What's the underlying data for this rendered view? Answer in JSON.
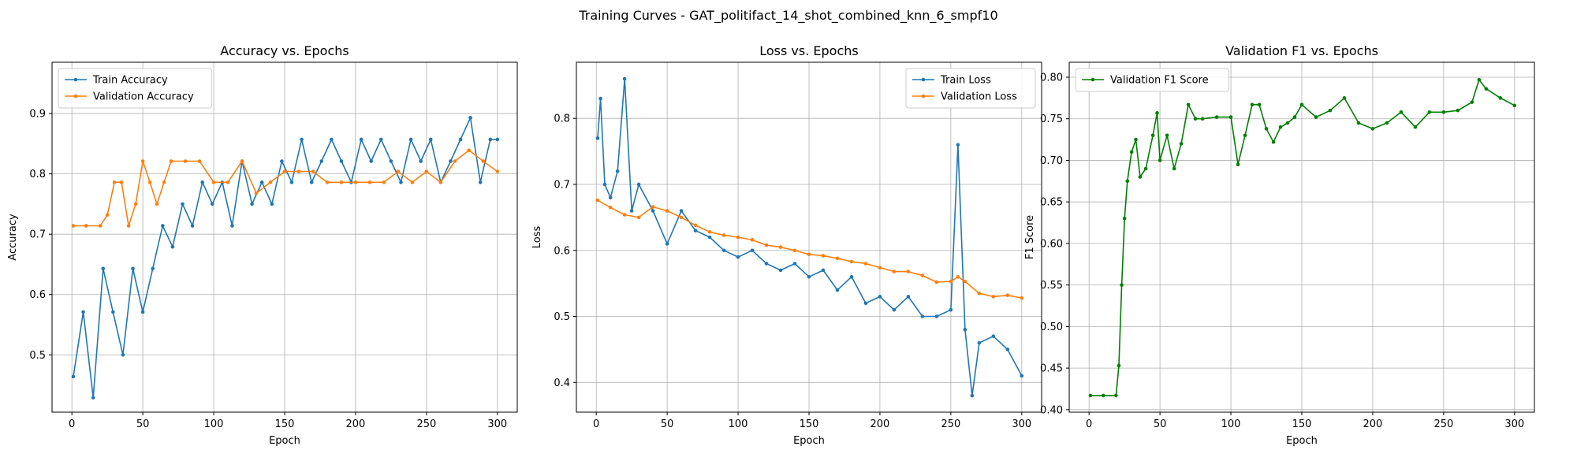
{
  "suptitle": "Training Curves - GAT_politifact_14_shot_combined_knn_6_smpf10",
  "colors": {
    "blue": "#1f77b4",
    "orange": "#ff7f0e",
    "green": "#008000",
    "grid": "#b0b0b0"
  },
  "chart_data": [
    {
      "type": "line",
      "title": "Accuracy vs. Epochs",
      "xlabel": "Epoch",
      "ylabel": "Accuracy",
      "xlim": [
        -14,
        314
      ],
      "ylim": [
        0.405,
        0.985
      ],
      "xticks": [
        0,
        50,
        100,
        150,
        200,
        250,
        300
      ],
      "yticks": [
        0.5,
        0.6,
        0.7,
        0.8,
        0.9
      ],
      "grid": true,
      "legend": "upper-left",
      "series": [
        {
          "name": "Train Accuracy",
          "color": "#1f77b4",
          "x": [
            1,
            8,
            15,
            22,
            29,
            36,
            43,
            50,
            57,
            64,
            71,
            78,
            85,
            92,
            99,
            106,
            113,
            120,
            127,
            134,
            141,
            148,
            155,
            162,
            169,
            176,
            183,
            190,
            197,
            204,
            211,
            218,
            225,
            232,
            239,
            246,
            253,
            260,
            267,
            274,
            281,
            288,
            295,
            300
          ],
          "values": [
            0.464,
            0.571,
            0.429,
            0.643,
            0.571,
            0.5,
            0.643,
            0.571,
            0.643,
            0.714,
            0.679,
            0.75,
            0.714,
            0.786,
            0.75,
            0.786,
            0.714,
            0.821,
            0.75,
            0.786,
            0.75,
            0.821,
            0.786,
            0.857,
            0.786,
            0.821,
            0.857,
            0.821,
            0.786,
            0.857,
            0.821,
            0.857,
            0.821,
            0.786,
            0.857,
            0.821,
            0.857,
            0.786,
            0.821,
            0.857,
            0.893,
            0.786,
            0.857,
            0.857
          ]
        },
        {
          "name": "Validation Accuracy",
          "color": "#ff7f0e",
          "x": [
            1,
            10,
            20,
            25,
            30,
            35,
            40,
            45,
            50,
            55,
            60,
            65,
            70,
            80,
            90,
            100,
            110,
            120,
            130,
            140,
            150,
            160,
            170,
            180,
            190,
            200,
            210,
            220,
            230,
            240,
            250,
            260,
            270,
            280,
            290,
            300
          ],
          "values": [
            0.714,
            0.714,
            0.714,
            0.732,
            0.786,
            0.786,
            0.714,
            0.75,
            0.821,
            0.786,
            0.75,
            0.786,
            0.821,
            0.821,
            0.821,
            0.786,
            0.786,
            0.821,
            0.768,
            0.786,
            0.804,
            0.804,
            0.804,
            0.786,
            0.786,
            0.786,
            0.786,
            0.786,
            0.804,
            0.786,
            0.804,
            0.786,
            0.821,
            0.839,
            0.821,
            0.804
          ]
        }
      ]
    },
    {
      "type": "line",
      "title": "Loss vs. Epochs",
      "xlabel": "Epoch",
      "ylabel": "Loss",
      "xlim": [
        -14,
        314
      ],
      "ylim": [
        0.355,
        0.885
      ],
      "xticks": [
        0,
        50,
        100,
        150,
        200,
        250,
        300
      ],
      "yticks": [
        0.4,
        0.5,
        0.6,
        0.7,
        0.8
      ],
      "grid": true,
      "legend": "upper-right",
      "series": [
        {
          "name": "Train Loss",
          "color": "#1f77b4",
          "x": [
            1,
            3,
            6,
            10,
            15,
            20,
            25,
            30,
            40,
            50,
            60,
            70,
            80,
            90,
            100,
            110,
            120,
            130,
            140,
            150,
            160,
            170,
            180,
            190,
            200,
            210,
            220,
            230,
            240,
            250,
            255,
            260,
            265,
            270,
            280,
            290,
            300
          ],
          "values": [
            0.77,
            0.83,
            0.7,
            0.68,
            0.72,
            0.86,
            0.66,
            0.7,
            0.66,
            0.61,
            0.66,
            0.63,
            0.62,
            0.6,
            0.59,
            0.6,
            0.58,
            0.57,
            0.58,
            0.56,
            0.57,
            0.54,
            0.56,
            0.52,
            0.53,
            0.51,
            0.53,
            0.5,
            0.5,
            0.51,
            0.76,
            0.48,
            0.38,
            0.46,
            0.47,
            0.45,
            0.41
          ]
        },
        {
          "name": "Validation Loss",
          "color": "#ff7f0e",
          "x": [
            1,
            10,
            20,
            30,
            40,
            50,
            60,
            70,
            80,
            90,
            100,
            110,
            120,
            130,
            140,
            150,
            160,
            170,
            180,
            190,
            200,
            210,
            220,
            230,
            240,
            250,
            255,
            260,
            270,
            280,
            290,
            300
          ],
          "values": [
            0.676,
            0.665,
            0.654,
            0.65,
            0.666,
            0.66,
            0.65,
            0.638,
            0.628,
            0.623,
            0.62,
            0.616,
            0.608,
            0.605,
            0.6,
            0.594,
            0.592,
            0.588,
            0.583,
            0.58,
            0.574,
            0.568,
            0.568,
            0.562,
            0.552,
            0.553,
            0.56,
            0.553,
            0.535,
            0.53,
            0.532,
            0.528
          ]
        }
      ]
    },
    {
      "type": "line",
      "title": "Validation F1 vs. Epochs",
      "xlabel": "Epoch",
      "ylabel": "F1 Score",
      "xlim": [
        -14,
        314
      ],
      "ylim": [
        0.397,
        0.818
      ],
      "xticks": [
        0,
        50,
        100,
        150,
        200,
        250,
        300
      ],
      "yticks": [
        0.4,
        0.45,
        0.5,
        0.55,
        0.6,
        0.65,
        0.7,
        0.75,
        0.8
      ],
      "grid": true,
      "legend": "upper-left",
      "series": [
        {
          "name": "Validation F1 Score",
          "color": "#008000",
          "x": [
            1,
            10,
            19,
            21,
            23,
            25,
            27,
            30,
            33,
            36,
            40,
            45,
            48,
            50,
            55,
            60,
            65,
            70,
            75,
            80,
            90,
            100,
            105,
            110,
            115,
            120,
            125,
            130,
            135,
            140,
            145,
            150,
            160,
            170,
            180,
            190,
            200,
            210,
            220,
            230,
            240,
            250,
            260,
            270,
            275,
            280,
            290,
            300
          ],
          "values": [
            0.417,
            0.417,
            0.417,
            0.453,
            0.55,
            0.63,
            0.675,
            0.71,
            0.725,
            0.68,
            0.69,
            0.73,
            0.757,
            0.7,
            0.73,
            0.69,
            0.72,
            0.767,
            0.75,
            0.75,
            0.752,
            0.752,
            0.695,
            0.73,
            0.767,
            0.767,
            0.738,
            0.722,
            0.74,
            0.745,
            0.752,
            0.767,
            0.752,
            0.76,
            0.775,
            0.745,
            0.738,
            0.745,
            0.758,
            0.74,
            0.758,
            0.758,
            0.76,
            0.77,
            0.797,
            0.786,
            0.775,
            0.766
          ]
        }
      ]
    }
  ]
}
